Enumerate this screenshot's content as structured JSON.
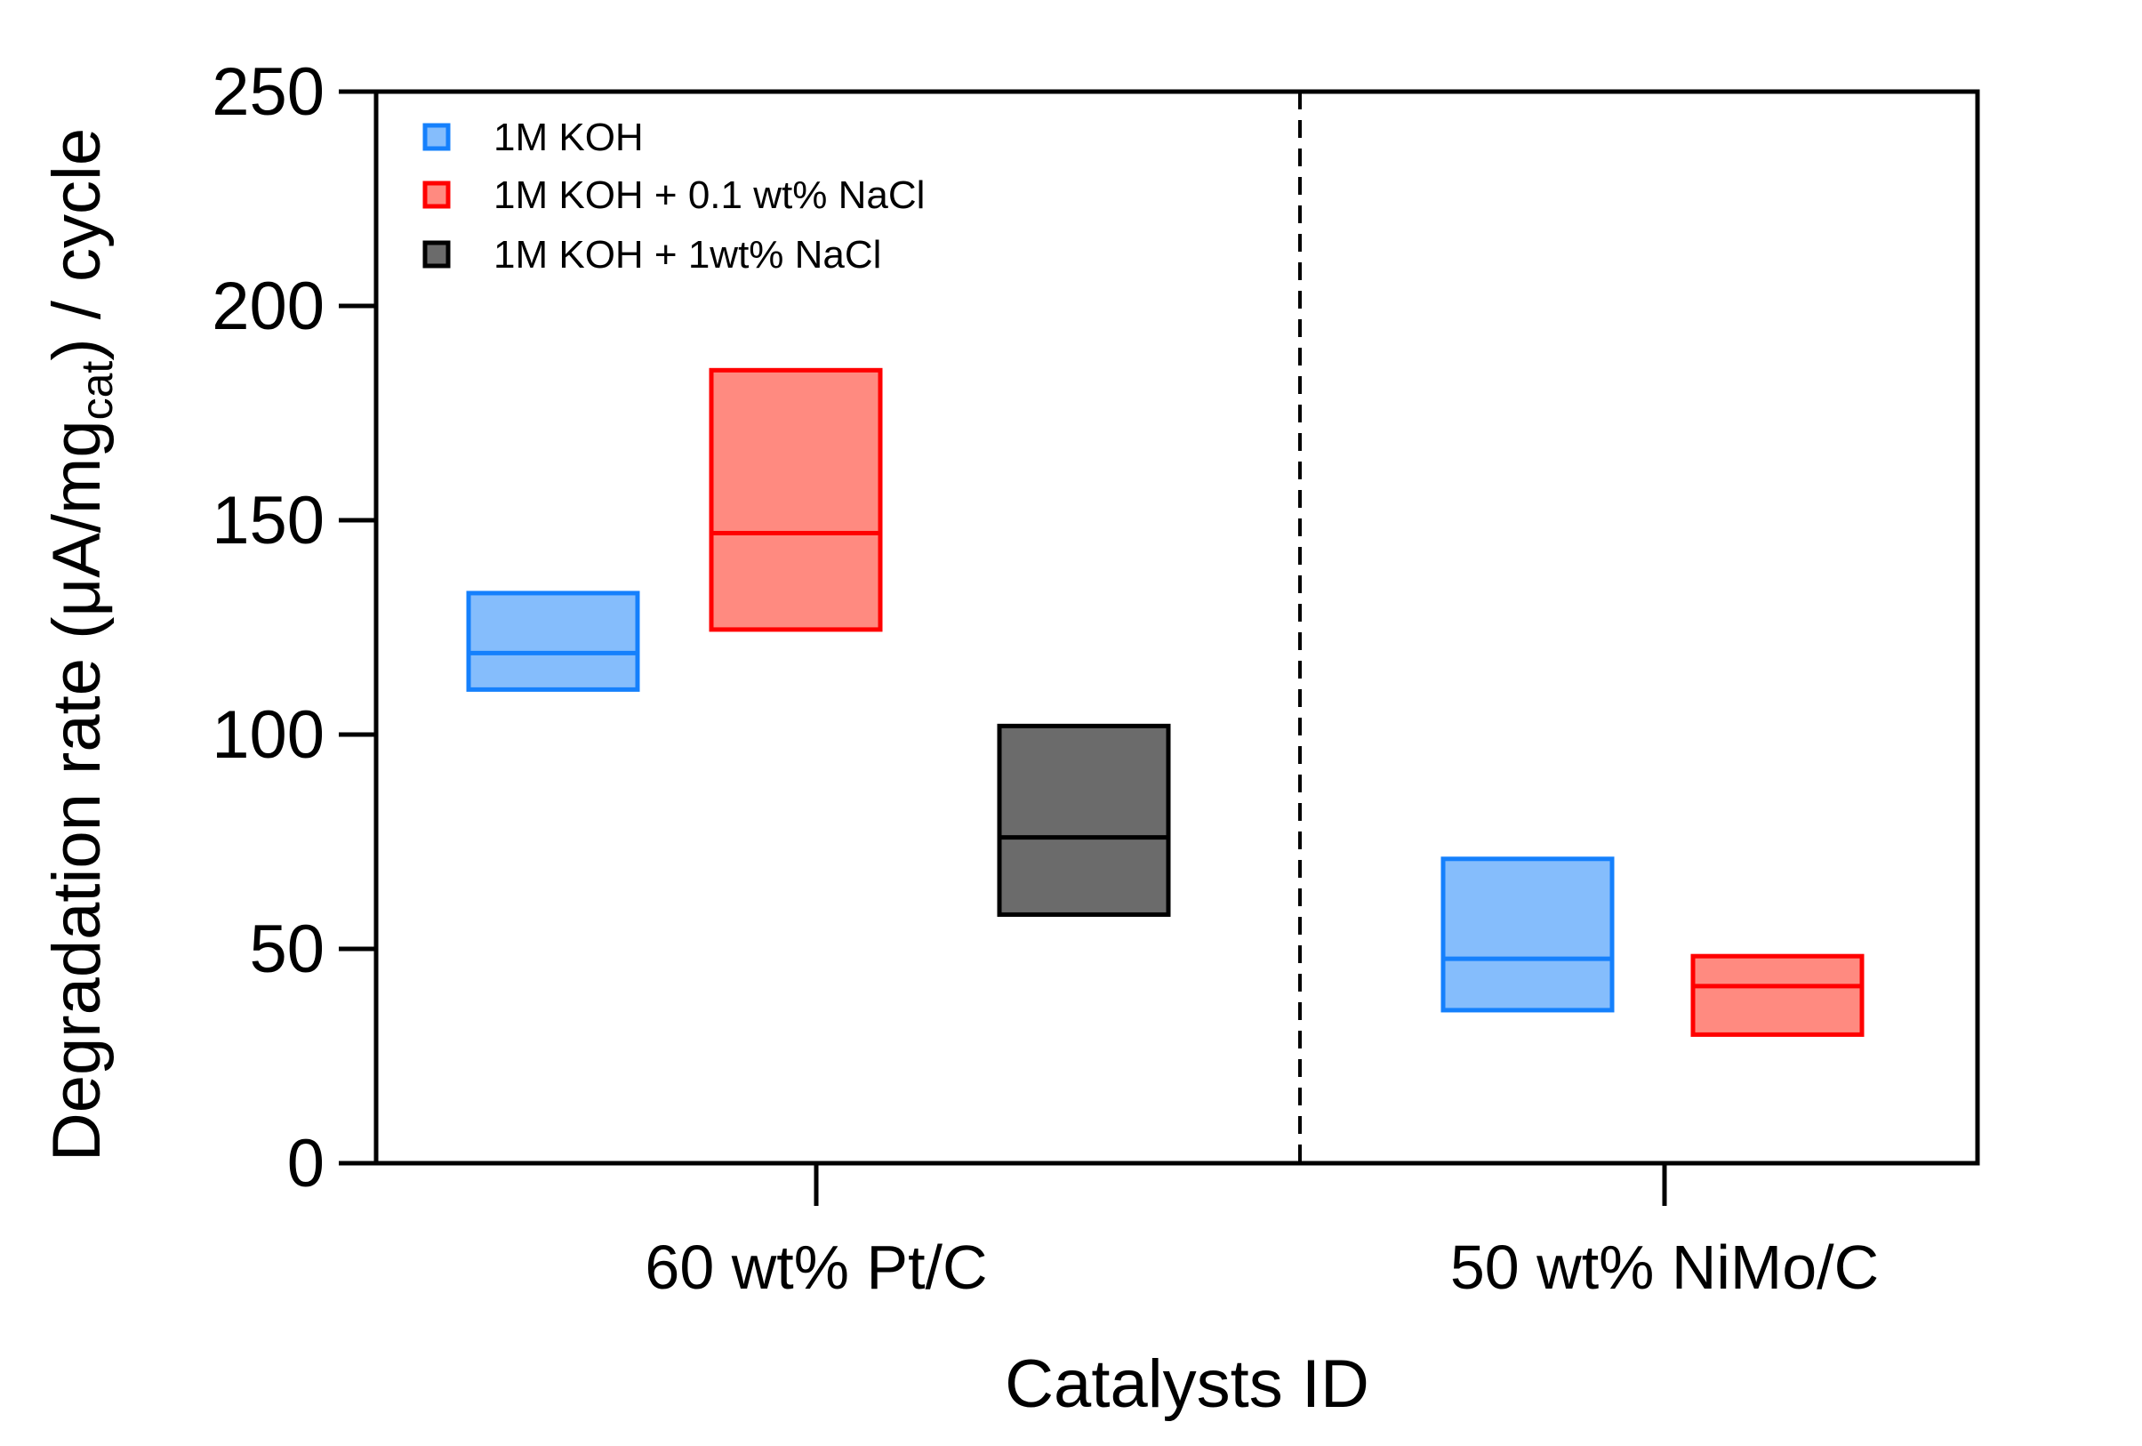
{
  "chart_data": {
    "type": "box",
    "title": "",
    "xlabel": "Catalysts ID",
    "ylabel": {
      "prefix": "Degradation rate (μA/mg",
      "subscript": "cat",
      "suffix": ") / cycle"
    },
    "ylim": [
      0,
      250
    ],
    "yticks": [
      0,
      50,
      100,
      150,
      200,
      250
    ],
    "categories": [
      "60 wt% Pt/C",
      "50 wt% NiMo/C"
    ],
    "legend_position": "top-left",
    "series": [
      {
        "name": "1M KOH",
        "fill": "#85bdfc",
        "stroke": "#1580fc",
        "boxes": [
          {
            "category": "60 wt% Pt/C",
            "min": 110.5,
            "median": 119,
            "max": 133
          },
          {
            "category": "50 wt% NiMo/C",
            "min": 35.7,
            "median": 47.7,
            "max": 71
          }
        ]
      },
      {
        "name": "1M KOH + 0.1 wt% NaCl",
        "fill": "#ff8a80",
        "stroke": "#ff0000",
        "boxes": [
          {
            "category": "60 wt% Pt/C",
            "min": 124.5,
            "median": 147,
            "max": 185
          },
          {
            "category": "50 wt% NiMo/C",
            "min": 30,
            "median": 41.3,
            "max": 48.3
          }
        ]
      },
      {
        "name": "1M KOH + 1wt% NaCl",
        "fill": "#6b6b6b",
        "stroke": "#000000",
        "boxes": [
          {
            "category": "60 wt% Pt/C",
            "min": 58,
            "median": 76,
            "max": 102
          }
        ]
      }
    ],
    "separator": "dashed vertical line between catalyst groups"
  }
}
